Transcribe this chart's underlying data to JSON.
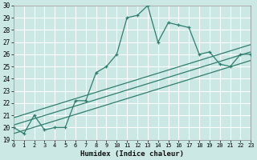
{
  "xlabel": "Humidex (Indice chaleur)",
  "bg_color": "#cce8e4",
  "grid_color": "#ffffff",
  "line_color": "#2e7d6e",
  "xmin": 0,
  "xmax": 23,
  "ymin": 19,
  "ymax": 30,
  "main_x": [
    0,
    1,
    2,
    3,
    4,
    5,
    6,
    7,
    8,
    9,
    10,
    11,
    12,
    13,
    14,
    15,
    16,
    17,
    18,
    19,
    20,
    21,
    22,
    23
  ],
  "main_y": [
    20.0,
    19.5,
    21.0,
    19.8,
    20.0,
    20.0,
    22.2,
    22.2,
    24.5,
    25.0,
    26.0,
    29.0,
    29.2,
    30.0,
    27.0,
    28.6,
    28.4,
    28.2,
    26.0,
    26.2,
    25.2,
    25.0,
    26.0,
    26.0
  ],
  "trend1_x": [
    0,
    23
  ],
  "trend1_y": [
    20.8,
    26.8
  ],
  "trend2_x": [
    0,
    23
  ],
  "trend2_y": [
    20.2,
    26.2
  ],
  "trend3_x": [
    0,
    23
  ],
  "trend3_y": [
    19.5,
    25.5
  ]
}
